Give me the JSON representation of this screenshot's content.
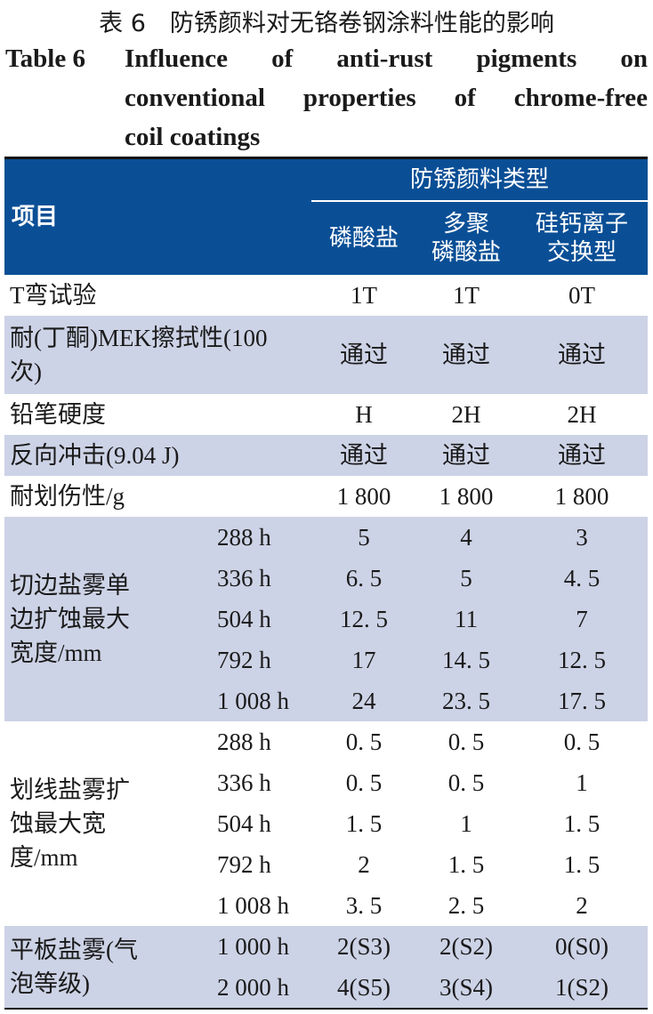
{
  "caption": {
    "cn": "表 6　防锈颜料对无铬卷钢涂料性能的影响",
    "en_label": "Table 6",
    "en_line1": "Influence of anti-rust pigments on",
    "en_line2": "conventional properties of chrome-free",
    "en_line3": "coil coatings"
  },
  "colors": {
    "header_bg": "#0a4f96",
    "shaded_row": "#cdd3e6"
  },
  "header": {
    "item": "项目",
    "group": "防锈颜料类型",
    "columns": [
      "磷酸盐",
      "多聚\n磷酸盐",
      "硅钙离子\n交换型"
    ]
  },
  "rows": [
    {
      "label": "T弯试验",
      "values": [
        "1T",
        "1T",
        "0T"
      ]
    },
    {
      "label": "耐(丁酮)MEK擦拭性(100次)",
      "values": [
        "通过",
        "通过",
        "通过"
      ]
    },
    {
      "label": "铅笔硬度",
      "values": [
        "H",
        "2H",
        "2H"
      ]
    },
    {
      "label": "反向冲击(9.04 J)",
      "values": [
        "通过",
        "通过",
        "通过"
      ]
    },
    {
      "label": "耐划伤性/g",
      "values": [
        "1 800",
        "1 800",
        "1 800"
      ]
    }
  ],
  "groups": [
    {
      "label": "切边盐雾单边扩蚀最大宽度/mm",
      "sub": [
        {
          "time": "288 h",
          "values": [
            "5",
            "4",
            "3"
          ]
        },
        {
          "time": "336 h",
          "values": [
            "6. 5",
            "5",
            "4. 5"
          ]
        },
        {
          "time": "504 h",
          "values": [
            "12. 5",
            "11",
            "7"
          ]
        },
        {
          "time": "792 h",
          "values": [
            "17",
            "14. 5",
            "12. 5"
          ]
        },
        {
          "time": "1 008 h",
          "values": [
            "24",
            "23. 5",
            "17. 5"
          ]
        }
      ]
    },
    {
      "label": "划线盐雾扩蚀最大宽度/mm",
      "sub": [
        {
          "time": "288 h",
          "values": [
            "0. 5",
            "0. 5",
            "0. 5"
          ]
        },
        {
          "time": "336 h",
          "values": [
            "0. 5",
            "0. 5",
            "1"
          ]
        },
        {
          "time": "504 h",
          "values": [
            "1. 5",
            "1",
            "1. 5"
          ]
        },
        {
          "time": "792 h",
          "values": [
            "2",
            "1. 5",
            "1. 5"
          ]
        },
        {
          "time": "1 008 h",
          "values": [
            "3. 5",
            "2. 5",
            "2"
          ]
        }
      ]
    },
    {
      "label": "平板盐雾(气泡等级)",
      "sub": [
        {
          "time": "1 000 h",
          "values": [
            "2(S3)",
            "2(S2)",
            "0(S0)"
          ]
        },
        {
          "time": "2 000 h",
          "values": [
            "4(S5)",
            "3(S4)",
            "1(S2)"
          ]
        }
      ]
    }
  ]
}
